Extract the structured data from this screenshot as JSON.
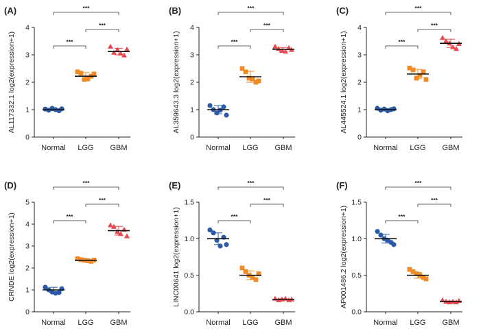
{
  "colors": {
    "normal": "#2b5ba8",
    "lgg": "#f08a24",
    "gbm": "#e8494f",
    "axis": "#222222"
  },
  "chart_data": [
    {
      "type": "scatter",
      "panel": "(A)",
      "ylabel": "AL117332.1 log2(expression+1)",
      "categories": [
        "Normal",
        "LGG",
        "GBM"
      ],
      "ylim": [
        0,
        4
      ],
      "yticks": [
        "0",
        "1",
        "2",
        "3",
        "4"
      ],
      "series": [
        {
          "name": "Normal",
          "marker": "circle",
          "values": [
            1.02,
            0.98,
            1.05,
            1.0,
            0.96,
            1.03
          ],
          "mean": 1.0,
          "sd": 0.04
        },
        {
          "name": "LGG",
          "marker": "square",
          "values": [
            2.38,
            2.33,
            2.1,
            2.12,
            2.22,
            2.3
          ],
          "mean": 2.22,
          "sd": 0.13
        },
        {
          "name": "GBM",
          "marker": "triangle",
          "values": [
            3.3,
            3.08,
            3.18,
            3.05,
            2.98,
            3.2
          ],
          "mean": 3.12,
          "sd": 0.12
        }
      ],
      "comparisons": [
        {
          "from": "Normal",
          "to": "LGG",
          "label": "***"
        },
        {
          "from": "LGG",
          "to": "GBM",
          "label": "***"
        },
        {
          "from": "Normal",
          "to": "GBM",
          "label": "***"
        }
      ]
    },
    {
      "type": "scatter",
      "panel": "(B)",
      "ylabel": "AL359643.3 log2(expression+1)",
      "categories": [
        "Normal",
        "LGG",
        "GBM"
      ],
      "ylim": [
        0,
        4
      ],
      "yticks": [
        "0",
        "1",
        "2",
        "3",
        "4"
      ],
      "series": [
        {
          "name": "Normal",
          "marker": "circle",
          "values": [
            1.15,
            1.0,
            0.88,
            0.98,
            1.1,
            0.8
          ],
          "mean": 1.0,
          "sd": 0.15
        },
        {
          "name": "LGG",
          "marker": "square",
          "values": [
            2.5,
            2.38,
            2.15,
            2.12,
            2.0,
            2.05
          ],
          "mean": 2.2,
          "sd": 0.2
        },
        {
          "name": "GBM",
          "marker": "triangle",
          "values": [
            3.3,
            3.22,
            3.15,
            3.12,
            3.25,
            3.18
          ],
          "mean": 3.2,
          "sd": 0.07
        }
      ],
      "comparisons": [
        {
          "from": "Normal",
          "to": "LGG",
          "label": "***"
        },
        {
          "from": "LGG",
          "to": "GBM",
          "label": "***"
        },
        {
          "from": "Normal",
          "to": "GBM",
          "label": "***"
        }
      ]
    },
    {
      "type": "scatter",
      "panel": "(C)",
      "ylabel": "AL445524.1 log2(expression+1)",
      "categories": [
        "Normal",
        "LGG",
        "GBM"
      ],
      "ylim": [
        0,
        4
      ],
      "yticks": [
        "0",
        "1",
        "2",
        "3",
        "4"
      ],
      "series": [
        {
          "name": "Normal",
          "marker": "circle",
          "values": [
            1.05,
            0.98,
            1.02,
            0.96,
            1.0,
            1.03
          ],
          "mean": 1.0,
          "sd": 0.04
        },
        {
          "name": "LGG",
          "marker": "square",
          "values": [
            2.52,
            2.45,
            2.15,
            2.25,
            2.38,
            2.1
          ],
          "mean": 2.3,
          "sd": 0.17
        },
        {
          "name": "GBM",
          "marker": "triangle",
          "values": [
            3.62,
            3.5,
            3.42,
            3.28,
            3.22,
            3.4
          ],
          "mean": 3.42,
          "sd": 0.15
        }
      ],
      "comparisons": [
        {
          "from": "Normal",
          "to": "LGG",
          "label": "***"
        },
        {
          "from": "LGG",
          "to": "GBM",
          "label": "***"
        },
        {
          "from": "Normal",
          "to": "GBM",
          "label": "***"
        }
      ]
    },
    {
      "type": "scatter",
      "panel": "(D)",
      "ylabel": "CRNDE log2(expression+1)",
      "categories": [
        "Normal",
        "LGG",
        "GBM"
      ],
      "ylim": [
        0,
        5
      ],
      "yticks": [
        "0",
        "1",
        "2",
        "3",
        "4",
        "5"
      ],
      "series": [
        {
          "name": "Normal",
          "marker": "circle",
          "values": [
            1.12,
            1.0,
            0.9,
            0.85,
            0.88,
            1.05
          ],
          "mean": 1.0,
          "sd": 0.12
        },
        {
          "name": "LGG",
          "marker": "square",
          "values": [
            2.42,
            2.38,
            2.35,
            2.33,
            2.3,
            2.36
          ],
          "mean": 2.35,
          "sd": 0.04
        },
        {
          "name": "GBM",
          "marker": "triangle",
          "values": [
            3.95,
            3.88,
            3.65,
            3.55,
            3.75,
            3.45
          ],
          "mean": 3.7,
          "sd": 0.2
        }
      ],
      "comparisons": [
        {
          "from": "Normal",
          "to": "LGG",
          "label": "***"
        },
        {
          "from": "LGG",
          "to": "GBM",
          "label": "***"
        },
        {
          "from": "Normal",
          "to": "GBM",
          "label": "***"
        }
      ]
    },
    {
      "type": "scatter",
      "panel": "(E)",
      "ylabel": "LINC00641 log2(expression+1)",
      "categories": [
        "Normal",
        "LGG",
        "GBM"
      ],
      "ylim": [
        0,
        1.5
      ],
      "yticks": [
        "0.0",
        "0.5",
        "1.0",
        "1.5"
      ],
      "series": [
        {
          "name": "Normal",
          "marker": "circle",
          "values": [
            1.12,
            1.08,
            0.98,
            0.9,
            1.02,
            0.92
          ],
          "mean": 1.0,
          "sd": 0.08
        },
        {
          "name": "LGG",
          "marker": "square",
          "values": [
            0.6,
            0.55,
            0.5,
            0.47,
            0.44,
            0.52
          ],
          "mean": 0.5,
          "sd": 0.06
        },
        {
          "name": "GBM",
          "marker": "triangle",
          "values": [
            0.18,
            0.16,
            0.17,
            0.18,
            0.16,
            0.17
          ],
          "mean": 0.17,
          "sd": 0.01
        }
      ],
      "comparisons": [
        {
          "from": "Normal",
          "to": "LGG",
          "label": "***"
        },
        {
          "from": "LGG",
          "to": "GBM",
          "label": "***"
        },
        {
          "from": "Normal",
          "to": "GBM",
          "label": "***"
        }
      ]
    },
    {
      "type": "scatter",
      "panel": "(F)",
      "ylabel": "AP001486.2 log2(expression+1)",
      "categories": [
        "Normal",
        "LGG",
        "GBM"
      ],
      "ylim": [
        0,
        1.5
      ],
      "yticks": [
        "0.0",
        "0.5",
        "1.0",
        "1.5"
      ],
      "series": [
        {
          "name": "Normal",
          "marker": "circle",
          "values": [
            1.1,
            1.05,
            1.0,
            0.98,
            0.95,
            0.92
          ],
          "mean": 1.0,
          "sd": 0.06
        },
        {
          "name": "LGG",
          "marker": "square",
          "values": [
            0.58,
            0.55,
            0.52,
            0.5,
            0.47,
            0.45
          ],
          "mean": 0.5,
          "sd": 0.04
        },
        {
          "name": "GBM",
          "marker": "triangle",
          "values": [
            0.16,
            0.14,
            0.13,
            0.14,
            0.13,
            0.15
          ],
          "mean": 0.14,
          "sd": 0.01
        }
      ],
      "comparisons": [
        {
          "from": "Normal",
          "to": "LGG",
          "label": "***"
        },
        {
          "from": "LGG",
          "to": "GBM",
          "label": "***"
        },
        {
          "from": "Normal",
          "to": "GBM",
          "label": "***"
        }
      ]
    }
  ]
}
